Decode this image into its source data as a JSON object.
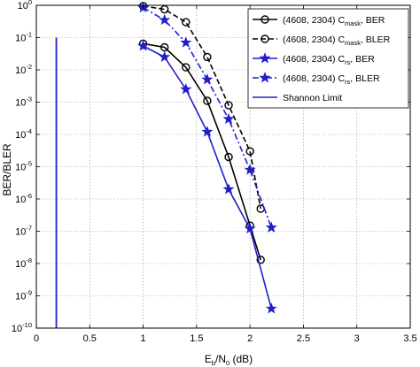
{
  "chart_data": {
    "type": "line",
    "title": "",
    "xlabel": {
      "main": "E",
      "sub1": "b",
      "mid": "/N",
      "sub2": "0",
      "tail": " (dB)"
    },
    "ylabel": "BER/BLER",
    "xlim": [
      0,
      3.5
    ],
    "ylim": [
      1e-10,
      1
    ],
    "yscale": "log",
    "grid": true,
    "legend_position": "top-right",
    "x_ticks": [
      "0",
      "0.5",
      "1",
      "1.5",
      "2",
      "2.5",
      "3",
      "3.5"
    ],
    "y_ticks": [
      {
        "base": "10",
        "exp": "0"
      },
      {
        "base": "10",
        "exp": "-1"
      },
      {
        "base": "10",
        "exp": "-2"
      },
      {
        "base": "10",
        "exp": "-3"
      },
      {
        "base": "10",
        "exp": "-4"
      },
      {
        "base": "10",
        "exp": "-5"
      },
      {
        "base": "10",
        "exp": "-6"
      },
      {
        "base": "10",
        "exp": "-7"
      },
      {
        "base": "10",
        "exp": "-8"
      },
      {
        "base": "10",
        "exp": "-9"
      },
      {
        "base": "10",
        "exp": "-10"
      }
    ],
    "series": [
      {
        "name": {
          "pre": "(4608, 2304) C",
          "sub": "mask",
          "post": ", BER"
        },
        "color": "#000000",
        "dash": "solid",
        "marker": "circle",
        "x": [
          1.0,
          1.2,
          1.4,
          1.6,
          1.8,
          2.0,
          2.1
        ],
        "y": [
          0.065,
          0.05,
          0.012,
          0.0011,
          2e-05,
          1.5e-07,
          1.3e-08
        ]
      },
      {
        "name": {
          "pre": "(4608, 2304) C",
          "sub": "mask",
          "post": ", BLER"
        },
        "color": "#000000",
        "dash": "dashed",
        "marker": "circle",
        "x": [
          1.0,
          1.2,
          1.4,
          1.6,
          1.8,
          2.0,
          2.1
        ],
        "y": [
          0.95,
          0.75,
          0.3,
          0.025,
          0.0008,
          3e-05,
          5e-07
        ]
      },
      {
        "name": {
          "pre": "(4608, 2304) C",
          "sub": "rs",
          "post": ", BER"
        },
        "color": "#1f1fcc",
        "dash": "solid",
        "marker": "star",
        "x": [
          1.0,
          1.2,
          1.4,
          1.6,
          1.8,
          2.0,
          2.2
        ],
        "y": [
          0.055,
          0.025,
          0.0025,
          0.00012,
          2e-06,
          1.2e-07,
          4e-10
        ]
      },
      {
        "name": {
          "pre": "(4608, 2304) C",
          "sub": "rs",
          "post": ", BLER"
        },
        "color": "#1f1fcc",
        "dash": "dashdot",
        "marker": "star",
        "x": [
          1.0,
          1.2,
          1.4,
          1.6,
          1.8,
          2.0,
          2.2
        ],
        "y": [
          0.85,
          0.35,
          0.07,
          0.005,
          0.0003,
          8e-06,
          1.3e-07
        ]
      },
      {
        "name": {
          "pre": "Shannon Limit",
          "sub": "",
          "post": ""
        },
        "color": "#1f1fcc",
        "dash": "solid",
        "marker": "none",
        "x": [
          0.187,
          0.187
        ],
        "y": [
          0.1,
          1e-10
        ]
      }
    ]
  }
}
